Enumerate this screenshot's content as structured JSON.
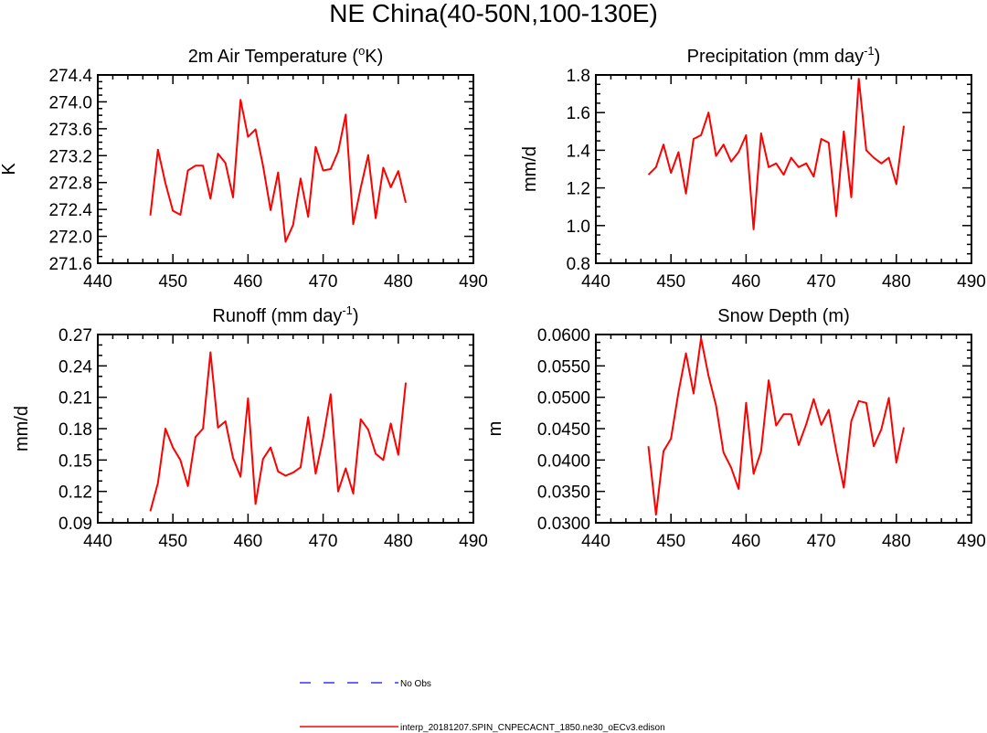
{
  "title": "NE China(40-50N,100-130E)",
  "colors": {
    "model": "#ff0000",
    "obs": "#3333ff",
    "axis": "#000000"
  },
  "legend": {
    "obs_label": "No Obs",
    "model_label": "interp_20181207.SPIN_CNPECACNT_1850.ne30_oECv3.edison"
  },
  "chart_data": [
    {
      "type": "line",
      "title": "2m Air Temperature (",
      "title_sup": "o",
      "title_after": "K)",
      "xlabel": "",
      "ylabel": "K",
      "xlim": [
        440,
        490
      ],
      "ylim": [
        271.6,
        274.4
      ],
      "xticks": [
        440,
        450,
        460,
        470,
        480,
        490
      ],
      "xtick_labels": [
        "440",
        "450",
        "460",
        "470",
        "480",
        "490"
      ],
      "yticks": [
        271.6,
        272.0,
        272.4,
        272.8,
        273.2,
        273.6,
        274.0,
        274.4
      ],
      "ytick_labels": [
        "271.6",
        "272.0",
        "272.4",
        "272.8",
        "273.2",
        "273.6",
        "274.0",
        "274.4"
      ],
      "x": [
        447,
        448,
        449,
        450,
        451,
        452,
        453,
        454,
        455,
        456,
        457,
        458,
        459,
        460,
        461,
        462,
        463,
        464,
        465,
        466,
        467,
        468,
        469,
        470,
        471,
        472,
        473,
        474,
        475,
        476,
        477,
        478,
        479,
        480,
        481
      ],
      "series": [
        {
          "name": "interp_20181207.SPIN_CNPECACNT_1850.ne30_oECv3.edison",
          "values": [
            272.31,
            273.29,
            272.79,
            272.38,
            272.32,
            272.98,
            273.05,
            273.05,
            272.56,
            273.23,
            273.09,
            272.58,
            274.03,
            273.48,
            273.59,
            273.05,
            272.39,
            272.95,
            271.92,
            272.17,
            272.86,
            272.29,
            273.33,
            272.98,
            273.0,
            273.26,
            273.81,
            272.18,
            272.72,
            273.21,
            272.27,
            273.02,
            272.73,
            272.97,
            272.5
          ]
        }
      ]
    },
    {
      "type": "line",
      "title": "Precipitation (mm day",
      "title_sup": "-1",
      "title_after": ")",
      "xlabel": "",
      "ylabel": "mm/d",
      "xlim": [
        440,
        490
      ],
      "ylim": [
        0.8,
        1.8
      ],
      "xticks": [
        440,
        450,
        460,
        470,
        480,
        490
      ],
      "xtick_labels": [
        "440",
        "450",
        "460",
        "470",
        "480",
        "490"
      ],
      "yticks": [
        0.8,
        1.0,
        1.2,
        1.4,
        1.6,
        1.8
      ],
      "ytick_labels": [
        "0.8",
        "1.0",
        "1.2",
        "1.4",
        "1.6",
        "1.8"
      ],
      "x": [
        447,
        448,
        449,
        450,
        451,
        452,
        453,
        454,
        455,
        456,
        457,
        458,
        459,
        460,
        461,
        462,
        463,
        464,
        465,
        466,
        467,
        468,
        469,
        470,
        471,
        472,
        473,
        474,
        475,
        476,
        477,
        478,
        479,
        480,
        481
      ],
      "series": [
        {
          "name": "interp_20181207.SPIN_CNPECACNT_1850.ne30_oECv3.edison",
          "values": [
            1.27,
            1.31,
            1.43,
            1.28,
            1.39,
            1.17,
            1.46,
            1.48,
            1.6,
            1.37,
            1.43,
            1.34,
            1.39,
            1.48,
            0.98,
            1.49,
            1.31,
            1.33,
            1.27,
            1.36,
            1.31,
            1.33,
            1.26,
            1.46,
            1.44,
            1.05,
            1.5,
            1.15,
            1.78,
            1.4,
            1.36,
            1.33,
            1.36,
            1.22,
            1.53
          ]
        }
      ]
    },
    {
      "type": "line",
      "title": "Runoff (mm day",
      "title_sup": "-1",
      "title_after": ")",
      "xlabel": "",
      "ylabel": "mm/d",
      "xlim": [
        440,
        490
      ],
      "ylim": [
        0.09,
        0.27
      ],
      "xticks": [
        440,
        450,
        460,
        470,
        480,
        490
      ],
      "xtick_labels": [
        "440",
        "450",
        "460",
        "470",
        "480",
        "490"
      ],
      "yticks": [
        0.09,
        0.12,
        0.15,
        0.18,
        0.21,
        0.24,
        0.27
      ],
      "ytick_labels": [
        "0.09",
        "0.12",
        "0.15",
        "0.18",
        "0.21",
        "0.24",
        "0.27"
      ],
      "x": [
        447,
        448,
        449,
        450,
        451,
        452,
        453,
        454,
        455,
        456,
        457,
        458,
        459,
        460,
        461,
        462,
        463,
        464,
        465,
        466,
        467,
        468,
        469,
        470,
        471,
        472,
        473,
        474,
        475,
        476,
        477,
        478,
        479,
        480,
        481
      ],
      "series": [
        {
          "name": "interp_20181207.SPIN_CNPECACNT_1850.ne30_oECv3.edison",
          "values": [
            0.101,
            0.128,
            0.18,
            0.162,
            0.15,
            0.125,
            0.172,
            0.18,
            0.253,
            0.181,
            0.187,
            0.152,
            0.134,
            0.209,
            0.108,
            0.151,
            0.162,
            0.139,
            0.135,
            0.138,
            0.143,
            0.191,
            0.137,
            0.171,
            0.213,
            0.12,
            0.142,
            0.118,
            0.189,
            0.179,
            0.156,
            0.15,
            0.185,
            0.155,
            0.224
          ]
        }
      ]
    },
    {
      "type": "line",
      "title": "Snow Depth (m)",
      "title_sup": "",
      "title_after": "",
      "xlabel": "",
      "ylabel": "m",
      "xlim": [
        440,
        490
      ],
      "ylim": [
        0.03,
        0.06
      ],
      "xticks": [
        440,
        450,
        460,
        470,
        480,
        490
      ],
      "xtick_labels": [
        "440",
        "450",
        "460",
        "470",
        "480",
        "490"
      ],
      "yticks": [
        0.03,
        0.035,
        0.04,
        0.045,
        0.05,
        0.055,
        0.06
      ],
      "ytick_labels": [
        "0.0300",
        "0.0350",
        "0.0400",
        "0.0450",
        "0.0500",
        "0.0550",
        "0.0600"
      ],
      "x": [
        447,
        448,
        449,
        450,
        451,
        452,
        453,
        454,
        455,
        456,
        457,
        458,
        459,
        460,
        461,
        462,
        463,
        464,
        465,
        466,
        467,
        468,
        469,
        470,
        471,
        472,
        473,
        474,
        475,
        476,
        477,
        478,
        479,
        480,
        481
      ],
      "series": [
        {
          "name": "interp_20181207.SPIN_CNPECACNT_1850.ne30_oECv3.edison",
          "values": [
            0.0422,
            0.0313,
            0.0414,
            0.0434,
            0.0508,
            0.057,
            0.0506,
            0.0594,
            0.0534,
            0.0487,
            0.0412,
            0.0388,
            0.0354,
            0.0491,
            0.0378,
            0.0414,
            0.0527,
            0.0455,
            0.0473,
            0.0473,
            0.0424,
            0.0457,
            0.0497,
            0.0456,
            0.048,
            0.0415,
            0.0356,
            0.0462,
            0.0494,
            0.0491,
            0.0422,
            0.0449,
            0.0499,
            0.0396,
            0.0452
          ]
        }
      ]
    }
  ]
}
